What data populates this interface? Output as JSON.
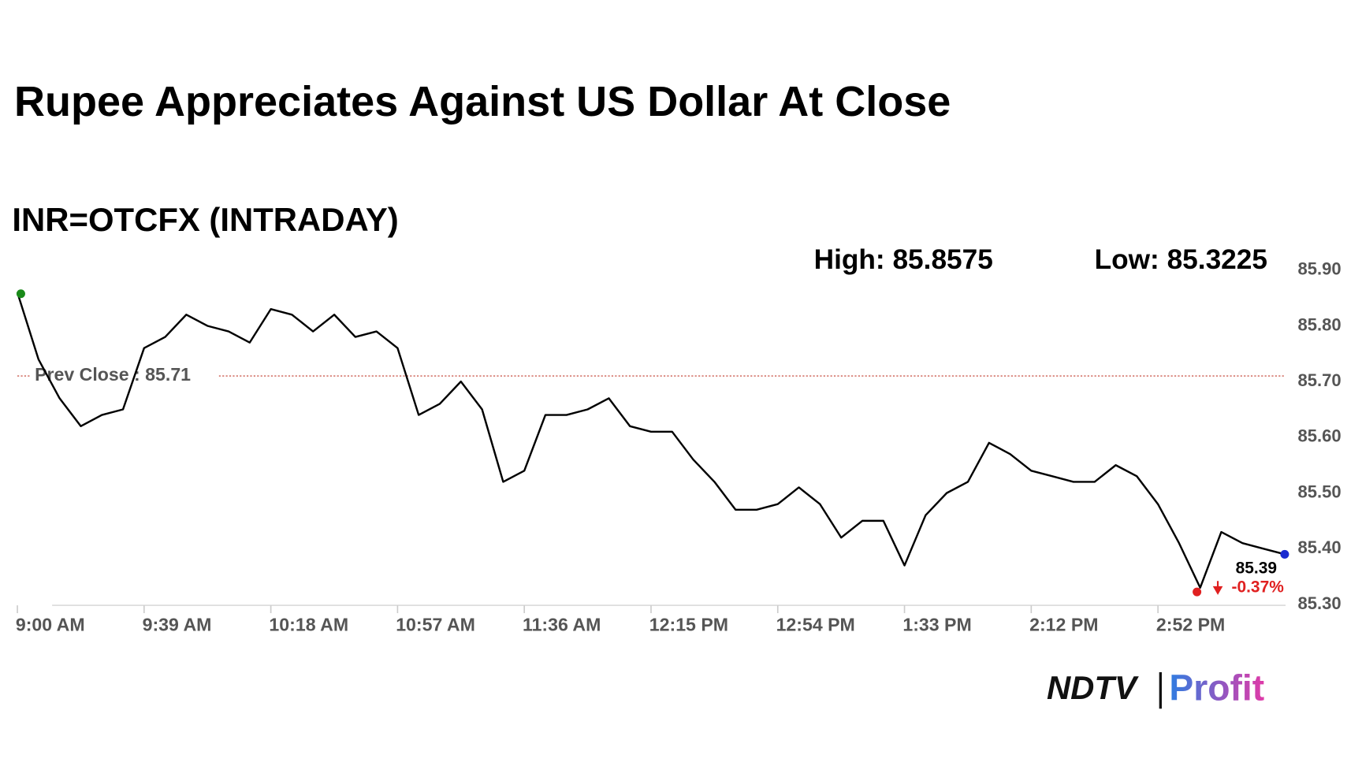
{
  "chart_data": {
    "type": "line",
    "title": "Rupee Appreciates Against US Dollar At Close",
    "subtitle": "INR=OTCFX (INTRADAY)",
    "high": {
      "label": "High: 85.8575",
      "value": 85.8575
    },
    "low": {
      "label": "Low: 85.3225",
      "value": 85.3225
    },
    "prev_close": {
      "label": "Prev Close : 85.71",
      "value": 85.71
    },
    "last": {
      "value": 85.39,
      "change": -0.37,
      "change_label": "-0.37%"
    },
    "categories": [
      "9:00 AM",
      null,
      null,
      null,
      null,
      null,
      "9:39 AM",
      null,
      null,
      null,
      null,
      null,
      "10:18 AM",
      null,
      null,
      null,
      null,
      null,
      "10:57 AM",
      null,
      null,
      null,
      null,
      null,
      "11:36 AM",
      null,
      null,
      null,
      null,
      null,
      "12:15 PM",
      null,
      null,
      null,
      null,
      null,
      "12:54 PM",
      null,
      null,
      null,
      null,
      null,
      "1:33 PM",
      null,
      null,
      null,
      null,
      null,
      "2:12 PM",
      null,
      null,
      null,
      null,
      null,
      "2:52 PM",
      null,
      null,
      null,
      null,
      null,
      null
    ],
    "values": [
      85.86,
      85.74,
      85.67,
      85.62,
      85.64,
      85.65,
      85.76,
      85.78,
      85.82,
      85.8,
      85.79,
      85.77,
      85.83,
      85.82,
      85.79,
      85.82,
      85.78,
      85.79,
      85.76,
      85.64,
      85.66,
      85.7,
      85.65,
      85.52,
      85.54,
      85.64,
      85.64,
      85.65,
      85.67,
      85.62,
      85.61,
      85.61,
      85.56,
      85.52,
      85.47,
      85.47,
      85.48,
      85.51,
      85.48,
      85.42,
      85.45,
      85.45,
      85.37,
      85.46,
      85.5,
      85.52,
      85.59,
      85.57,
      85.54,
      85.53,
      85.52,
      85.52,
      85.55,
      85.53,
      85.48,
      85.41,
      85.33,
      85.43,
      85.41,
      85.4,
      85.39
    ],
    "color": "#000000",
    "ylim": [
      85.3,
      85.9
    ],
    "yticks": [
      {
        "value": 85.3,
        "label": "85.30"
      },
      {
        "value": 85.4,
        "label": "85.40"
      },
      {
        "value": 85.5,
        "label": "85.50"
      },
      {
        "value": 85.6,
        "label": "85.60"
      },
      {
        "value": 85.7,
        "label": "85.70"
      },
      {
        "value": 85.8,
        "label": "85.80"
      },
      {
        "value": 85.9,
        "label": "85.90"
      }
    ]
  },
  "logo": {
    "left": "NDTV",
    "right": "Profit"
  }
}
